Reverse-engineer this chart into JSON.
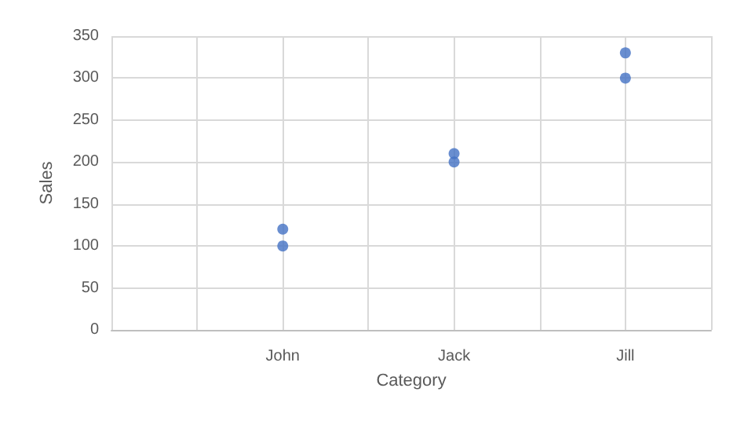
{
  "chart_data": {
    "type": "scatter",
    "xlabel": "Category",
    "ylabel": "Sales",
    "categories": [
      null,
      null,
      "John",
      null,
      "Jack",
      null,
      "Jill",
      null
    ],
    "series": [
      {
        "color": "#4472c4",
        "values": [
          null,
          null,
          100,
          null,
          200,
          null,
          300,
          null
        ]
      },
      {
        "color": "#4472c4",
        "values": [
          null,
          null,
          120,
          null,
          210,
          null,
          330,
          null
        ]
      }
    ],
    "ylim": [
      0,
      350
    ],
    "yticks": [
      0,
      50,
      100,
      150,
      200,
      250,
      300,
      350
    ],
    "grid": true,
    "marker": "circle"
  }
}
